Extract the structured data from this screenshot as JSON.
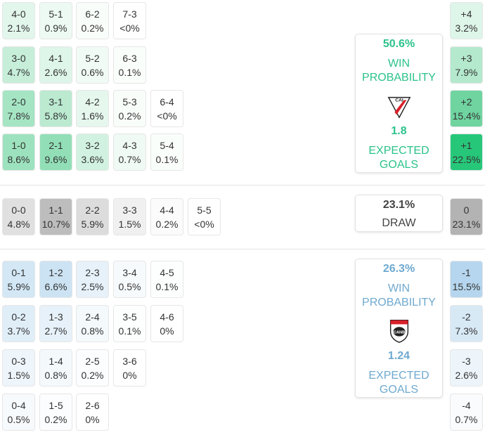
{
  "home": {
    "win_pct": "50.6%",
    "win_label_1": "WIN",
    "win_label_2": "PROBABILITY",
    "xg": "1.8",
    "xg_label_1": "EXPECTED",
    "xg_label_2": "GOALS",
    "crest_letters": "CAI",
    "color": "#2bc38a"
  },
  "draw": {
    "pct": "23.1%",
    "label": "DRAW"
  },
  "away": {
    "win_pct": "26.3%",
    "win_label_1": "WIN",
    "win_label_2": "PROBABILITY",
    "xg": "1.24",
    "xg_label_1": "EXPECTED",
    "xg_label_2": "GOALS",
    "crest_letters": "CANB",
    "color": "#6fa9cf"
  },
  "home_rows": [
    [
      {
        "score": "4-0",
        "pct": "2.1%",
        "bg": "#e2f6ec"
      },
      {
        "score": "5-1",
        "pct": "0.9%",
        "bg": "#edfaf3"
      },
      {
        "score": "6-2",
        "pct": "0.2%",
        "bg": "#f8fdfa"
      },
      {
        "score": "7-3",
        "pct": "<0%",
        "bg": "#ffffff"
      }
    ],
    [
      {
        "score": "3-0",
        "pct": "4.7%",
        "bg": "#c6eed9"
      },
      {
        "score": "4-1",
        "pct": "2.6%",
        "bg": "#def5e9"
      },
      {
        "score": "5-2",
        "pct": "0.6%",
        "bg": "#f1fbf5"
      },
      {
        "score": "6-3",
        "pct": "0.1%",
        "bg": "#fafefb"
      }
    ],
    [
      {
        "score": "2-0",
        "pct": "7.8%",
        "bg": "#a5e5c4"
      },
      {
        "score": "3-1",
        "pct": "5.8%",
        "bg": "#bbead1"
      },
      {
        "score": "4-2",
        "pct": "1.6%",
        "bg": "#e6f7ee"
      },
      {
        "score": "5-3",
        "pct": "0.2%",
        "bg": "#f8fdfa"
      },
      {
        "score": "6-4",
        "pct": "<0%",
        "bg": "#ffffff"
      }
    ],
    [
      {
        "score": "1-0",
        "pct": "8.6%",
        "bg": "#9de2be"
      },
      {
        "score": "2-1",
        "pct": "9.6%",
        "bg": "#92dfb7"
      },
      {
        "score": "3-2",
        "pct": "3.6%",
        "bg": "#d2f2e1"
      },
      {
        "score": "4-3",
        "pct": "0.7%",
        "bg": "#f0faf4"
      },
      {
        "score": "5-4",
        "pct": "0.1%",
        "bg": "#fafefb"
      }
    ]
  ],
  "draw_row": [
    {
      "score": "0-0",
      "pct": "4.8%",
      "bg": "#e0e0e0"
    },
    {
      "score": "1-1",
      "pct": "10.7%",
      "bg": "#bdbdbd"
    },
    {
      "score": "2-2",
      "pct": "5.9%",
      "bg": "#dcdcdc"
    },
    {
      "score": "3-3",
      "pct": "1.5%",
      "bg": "#f0f0f0"
    },
    {
      "score": "4-4",
      "pct": "0.2%",
      "bg": "#fbfbfb"
    },
    {
      "score": "5-5",
      "pct": "<0%",
      "bg": "#ffffff"
    }
  ],
  "away_rows": [
    [
      {
        "score": "0-1",
        "pct": "5.9%",
        "bg": "#d3e7f5"
      },
      {
        "score": "1-2",
        "pct": "6.6%",
        "bg": "#cce3f3"
      },
      {
        "score": "2-3",
        "pct": "2.5%",
        "bg": "#e6f1f9"
      },
      {
        "score": "3-4",
        "pct": "0.5%",
        "bg": "#f7fafd"
      },
      {
        "score": "4-5",
        "pct": "0.1%",
        "bg": "#fdfefe"
      }
    ],
    [
      {
        "score": "0-2",
        "pct": "3.7%",
        "bg": "#e0eef8"
      },
      {
        "score": "1-3",
        "pct": "2.7%",
        "bg": "#e6f1f9"
      },
      {
        "score": "2-4",
        "pct": "0.8%",
        "bg": "#f4f9fc"
      },
      {
        "score": "3-5",
        "pct": "0.1%",
        "bg": "#fdfefe"
      },
      {
        "score": "4-6",
        "pct": "0%",
        "bg": "#ffffff"
      }
    ],
    [
      {
        "score": "0-3",
        "pct": "1.5%",
        "bg": "#eef5fb"
      },
      {
        "score": "1-4",
        "pct": "0.8%",
        "bg": "#f4f9fc"
      },
      {
        "score": "2-5",
        "pct": "0.2%",
        "bg": "#fbfdfe"
      },
      {
        "score": "3-6",
        "pct": "0%",
        "bg": "#ffffff"
      }
    ],
    [
      {
        "score": "0-4",
        "pct": "0.5%",
        "bg": "#f7fafd"
      },
      {
        "score": "1-5",
        "pct": "0.2%",
        "bg": "#fbfdfe"
      },
      {
        "score": "2-6",
        "pct": "0%",
        "bg": "#ffffff"
      }
    ]
  ],
  "margins_home": [
    {
      "label": "+4",
      "pct": "3.2%",
      "bg": "#def5e9"
    },
    {
      "label": "+3",
      "pct": "7.9%",
      "bg": "#b4e9cd"
    },
    {
      "label": "+2",
      "pct": "15.4%",
      "bg": "#6fd4a0"
    },
    {
      "label": "+1",
      "pct": "22.5%",
      "bg": "#27c77a"
    }
  ],
  "margin_draw": {
    "label": "0",
    "pct": "23.1%",
    "bg": "#b3b3b3"
  },
  "margins_away": [
    {
      "label": "-1",
      "pct": "15.5%",
      "bg": "#b5d6ee"
    },
    {
      "label": "-2",
      "pct": "7.3%",
      "bg": "#d8e9f6"
    },
    {
      "label": "-3",
      "pct": "2.6%",
      "bg": "#edf5fb"
    },
    {
      "label": "-4",
      "pct": "0.7%",
      "bg": "#f9fbfd"
    }
  ]
}
